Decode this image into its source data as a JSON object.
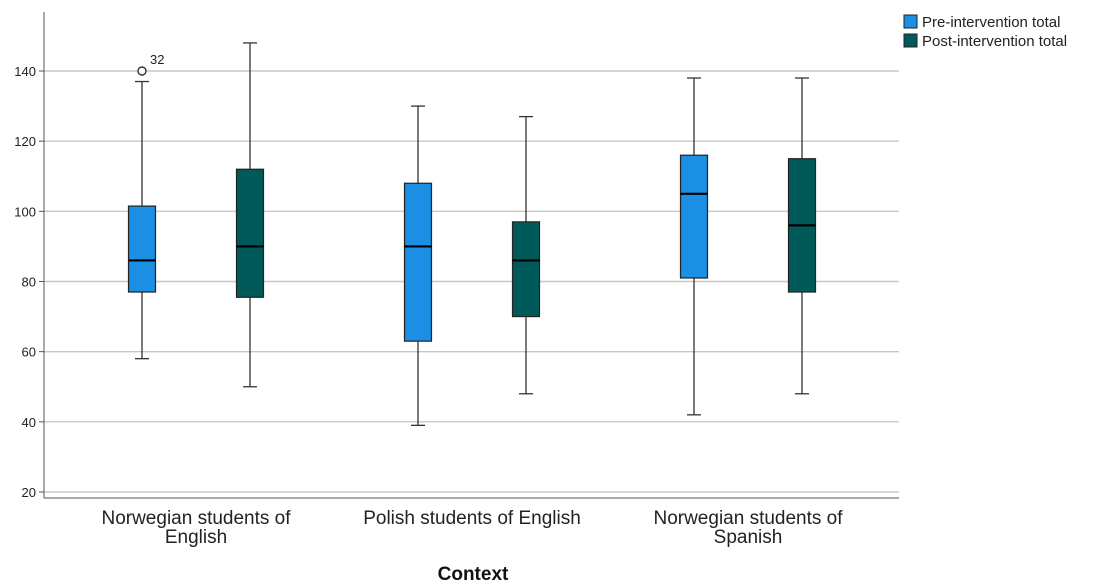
{
  "chart_data": {
    "type": "boxplot",
    "xlabel": "Context",
    "ylabel": "",
    "ylim": [
      20,
      150
    ],
    "yticks": [
      20,
      40,
      60,
      80,
      100,
      120,
      140
    ],
    "grid": "horizontal",
    "legend_position": "top-right",
    "categories": [
      [
        "Norwegian students of",
        "English"
      ],
      [
        "Polish students of English"
      ],
      [
        "Norwegian students of",
        "Spanish"
      ]
    ],
    "series": [
      {
        "name": "Pre-intervention total",
        "color": "#1a8fe3",
        "boxes": [
          {
            "min": 58,
            "q1": 77,
            "median": 86,
            "q3": 101.5,
            "max": 137,
            "outliers": [
              {
                "value": 140,
                "label": "32"
              }
            ]
          },
          {
            "min": 39,
            "q1": 63,
            "median": 90,
            "q3": 108,
            "max": 130,
            "outliers": []
          },
          {
            "min": 42,
            "q1": 81,
            "median": 105,
            "q3": 116,
            "max": 138,
            "outliers": []
          }
        ]
      },
      {
        "name": "Post-intervention total",
        "color": "#005a5a",
        "boxes": [
          {
            "min": 50,
            "q1": 75.5,
            "median": 90,
            "q3": 112,
            "max": 148,
            "outliers": []
          },
          {
            "min": 48,
            "q1": 70,
            "median": 86,
            "q3": 97,
            "max": 127,
            "outliers": []
          },
          {
            "min": 48,
            "q1": 77,
            "median": 96,
            "q3": 115,
            "max": 138,
            "outliers": []
          }
        ]
      }
    ]
  }
}
